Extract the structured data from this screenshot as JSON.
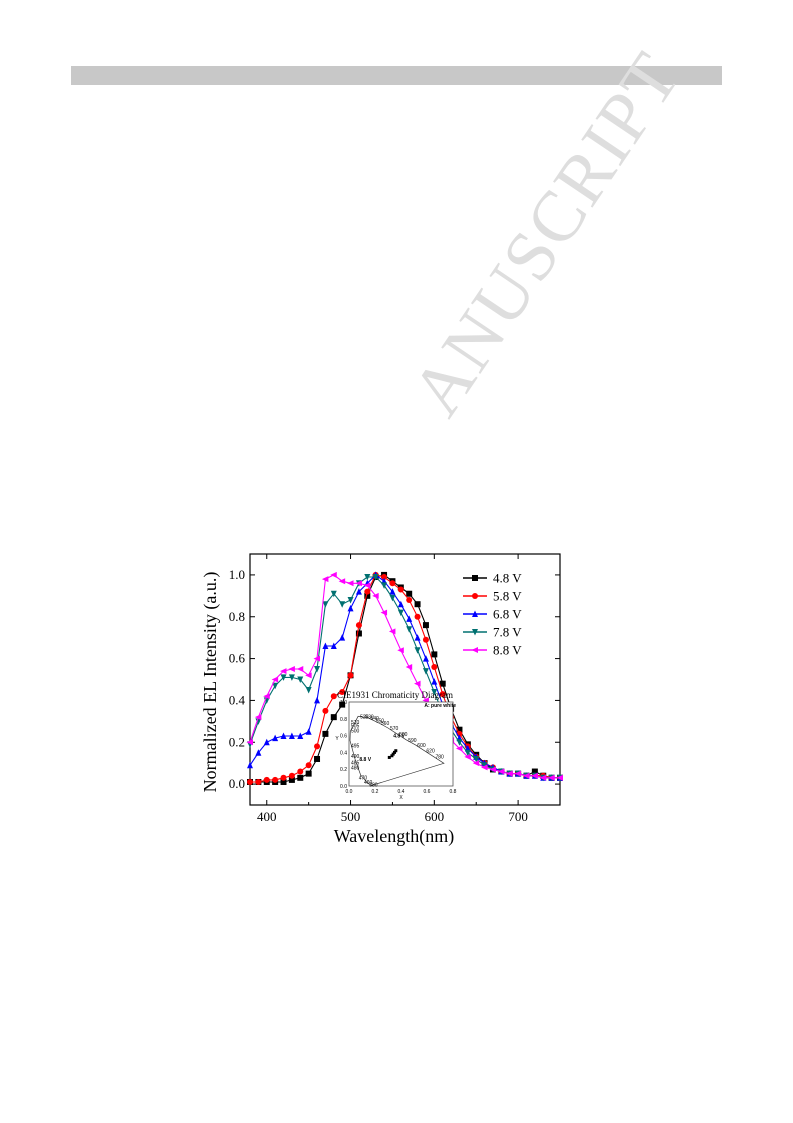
{
  "header": {
    "bar": ""
  },
  "watermark": {
    "text": "ANUSCRIPT"
  },
  "chart_data": {
    "type": "line",
    "title": "",
    "xlabel": "Wavelength(nm)",
    "ylabel": "Normalized EL Intensity (a.u.)",
    "xlim": [
      380,
      750
    ],
    "ylim": [
      -0.1,
      1.1
    ],
    "x_ticks": [
      400,
      500,
      600,
      700
    ],
    "y_ticks": [
      0.0,
      0.2,
      0.4,
      0.6,
      0.8,
      1.0
    ],
    "x_tick_labels": [
      "400",
      "500",
      "600",
      "700"
    ],
    "y_tick_labels": [
      "0.0",
      "0.2",
      "0.4",
      "0.6",
      "0.8",
      "1.0"
    ],
    "legend_position": "top-right",
    "series": [
      {
        "name": "4.8 V",
        "color": "#000000",
        "marker": "square",
        "x": [
          380,
          390,
          400,
          410,
          420,
          430,
          440,
          450,
          460,
          470,
          480,
          490,
          500,
          510,
          520,
          530,
          540,
          550,
          560,
          570,
          580,
          590,
          600,
          610,
          620,
          630,
          640,
          650,
          660,
          670,
          680,
          690,
          700,
          710,
          720,
          730,
          740,
          750
        ],
        "y": [
          0.01,
          0.01,
          0.01,
          0.01,
          0.01,
          0.02,
          0.03,
          0.05,
          0.12,
          0.24,
          0.32,
          0.38,
          0.52,
          0.72,
          0.9,
          0.99,
          1.0,
          0.97,
          0.94,
          0.91,
          0.86,
          0.76,
          0.62,
          0.48,
          0.36,
          0.26,
          0.19,
          0.14,
          0.1,
          0.07,
          0.06,
          0.05,
          0.05,
          0.04,
          0.06,
          0.04,
          0.03,
          0.03
        ]
      },
      {
        "name": "5.8 V",
        "color": "#ff0000",
        "marker": "circle",
        "x": [
          380,
          390,
          400,
          410,
          420,
          430,
          440,
          450,
          460,
          470,
          480,
          490,
          500,
          510,
          520,
          530,
          540,
          550,
          560,
          570,
          580,
          590,
          600,
          610,
          620,
          630,
          640,
          650,
          660,
          670,
          680,
          690,
          700,
          710,
          720,
          730,
          740,
          750
        ],
        "y": [
          0.01,
          0.01,
          0.02,
          0.02,
          0.03,
          0.04,
          0.06,
          0.09,
          0.18,
          0.35,
          0.42,
          0.44,
          0.52,
          0.76,
          0.92,
          1.0,
          0.99,
          0.96,
          0.93,
          0.88,
          0.8,
          0.69,
          0.56,
          0.43,
          0.32,
          0.24,
          0.18,
          0.13,
          0.1,
          0.08,
          0.06,
          0.05,
          0.05,
          0.04,
          0.04,
          0.04,
          0.03,
          0.03
        ]
      },
      {
        "name": "6.8 V",
        "color": "#0000ff",
        "marker": "triangle-up",
        "x": [
          380,
          390,
          400,
          410,
          420,
          430,
          440,
          450,
          460,
          470,
          480,
          490,
          500,
          510,
          520,
          530,
          540,
          550,
          560,
          570,
          580,
          590,
          600,
          610,
          620,
          630,
          640,
          650,
          660,
          670,
          680,
          690,
          700,
          710,
          720,
          730,
          740,
          750
        ],
        "y": [
          0.09,
          0.15,
          0.2,
          0.22,
          0.23,
          0.23,
          0.23,
          0.25,
          0.4,
          0.66,
          0.66,
          0.7,
          0.84,
          0.92,
          0.96,
          1.0,
          0.97,
          0.92,
          0.86,
          0.79,
          0.7,
          0.6,
          0.49,
          0.38,
          0.29,
          0.22,
          0.17,
          0.13,
          0.1,
          0.08,
          0.06,
          0.05,
          0.05,
          0.04,
          0.04,
          0.03,
          0.03,
          0.03
        ]
      },
      {
        "name": "7.8 V",
        "color": "#007070",
        "marker": "triangle-down",
        "x": [
          380,
          390,
          400,
          410,
          420,
          430,
          440,
          450,
          460,
          470,
          480,
          490,
          500,
          510,
          520,
          530,
          540,
          550,
          560,
          570,
          580,
          590,
          600,
          610,
          620,
          630,
          640,
          650,
          660,
          670,
          680,
          690,
          700,
          710,
          720,
          730,
          740,
          750
        ],
        "y": [
          0.19,
          0.3,
          0.4,
          0.47,
          0.51,
          0.51,
          0.5,
          0.45,
          0.55,
          0.86,
          0.91,
          0.86,
          0.88,
          0.96,
          0.99,
          0.99,
          0.95,
          0.89,
          0.82,
          0.74,
          0.64,
          0.54,
          0.44,
          0.34,
          0.26,
          0.2,
          0.15,
          0.12,
          0.09,
          0.07,
          0.06,
          0.05,
          0.05,
          0.04,
          0.04,
          0.03,
          0.03,
          0.03
        ]
      },
      {
        "name": "8.8 V",
        "color": "#ff00ff",
        "marker": "triangle-left",
        "x": [
          380,
          390,
          400,
          410,
          420,
          430,
          440,
          450,
          460,
          470,
          480,
          490,
          500,
          510,
          520,
          530,
          540,
          550,
          560,
          570,
          580,
          590,
          600,
          610,
          620,
          630,
          640,
          650,
          660,
          670,
          680,
          690,
          700,
          710,
          720,
          730,
          740,
          750
        ],
        "y": [
          0.2,
          0.32,
          0.42,
          0.5,
          0.54,
          0.55,
          0.55,
          0.52,
          0.6,
          0.98,
          1.0,
          0.97,
          0.96,
          0.96,
          0.95,
          0.9,
          0.82,
          0.73,
          0.64,
          0.56,
          0.48,
          0.4,
          0.33,
          0.26,
          0.21,
          0.17,
          0.13,
          0.1,
          0.08,
          0.07,
          0.06,
          0.05,
          0.05,
          0.04,
          0.04,
          0.03,
          0.03,
          0.03
        ]
      }
    ],
    "inset": {
      "title": "CIE1931 Chromaticity Diagram",
      "xlabel": "X",
      "ylabel": "Y",
      "x_tick_labels": [
        "0.0",
        "0.2",
        "0.4",
        "0.6",
        "0.8"
      ],
      "y_tick_labels": [
        "0.0",
        "0.2",
        "0.4",
        "0.6",
        "0.8",
        "1.0"
      ],
      "annotations": [
        "A: pure white",
        "4.8 V",
        "8.8 V"
      ],
      "wavelength_labels": [
        "520",
        "530",
        "540",
        "510",
        "550",
        "560",
        "505",
        "570",
        "500",
        "580",
        "590",
        "495",
        "600",
        "620",
        "780",
        "490",
        "485",
        "480",
        "470",
        "460",
        "380"
      ],
      "point_x": [
        0.36,
        0.35,
        0.34,
        0.33,
        0.31
      ],
      "point_y": [
        0.42,
        0.4,
        0.38,
        0.36,
        0.34
      ]
    }
  }
}
